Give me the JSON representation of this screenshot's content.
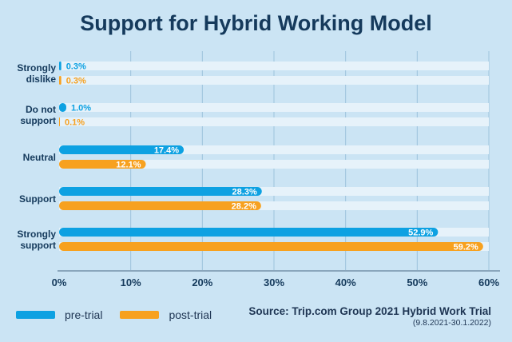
{
  "chart_data": {
    "type": "bar",
    "orientation": "horizontal",
    "title": "Support for Hybrid Working Model",
    "categories": [
      [
        "Strongly",
        "dislike"
      ],
      [
        "Do not",
        "support"
      ],
      [
        "Neutral"
      ],
      [
        "Support"
      ],
      [
        "Strongly",
        "support"
      ]
    ],
    "series": [
      {
        "name": "pre-trial",
        "color": "#0da1e2",
        "values": [
          0.3,
          1.0,
          17.4,
          28.3,
          52.9
        ],
        "labels": [
          "0.3%",
          "1.0%",
          "17.4%",
          "28.3%",
          "52.9%"
        ]
      },
      {
        "name": "post-trial",
        "color": "#f7a11f",
        "values": [
          0.3,
          0.1,
          12.1,
          28.2,
          59.2
        ],
        "labels": [
          "0.3%",
          "0.1%",
          "12.1%",
          "28.2%",
          "59.2%"
        ]
      }
    ],
    "xlim": [
      0,
      60
    ],
    "xticks": [
      0,
      10,
      20,
      30,
      40,
      50,
      60
    ],
    "xtick_labels": [
      "0%",
      "10%",
      "20%",
      "30%",
      "40%",
      "50%",
      "60%"
    ],
    "grid": true,
    "legend_position": "bottom-left",
    "source": "Source: Trip.com Group 2021 Hybrid Work Trial",
    "source_dates": "(9.8.2021-30.1.2022)"
  }
}
